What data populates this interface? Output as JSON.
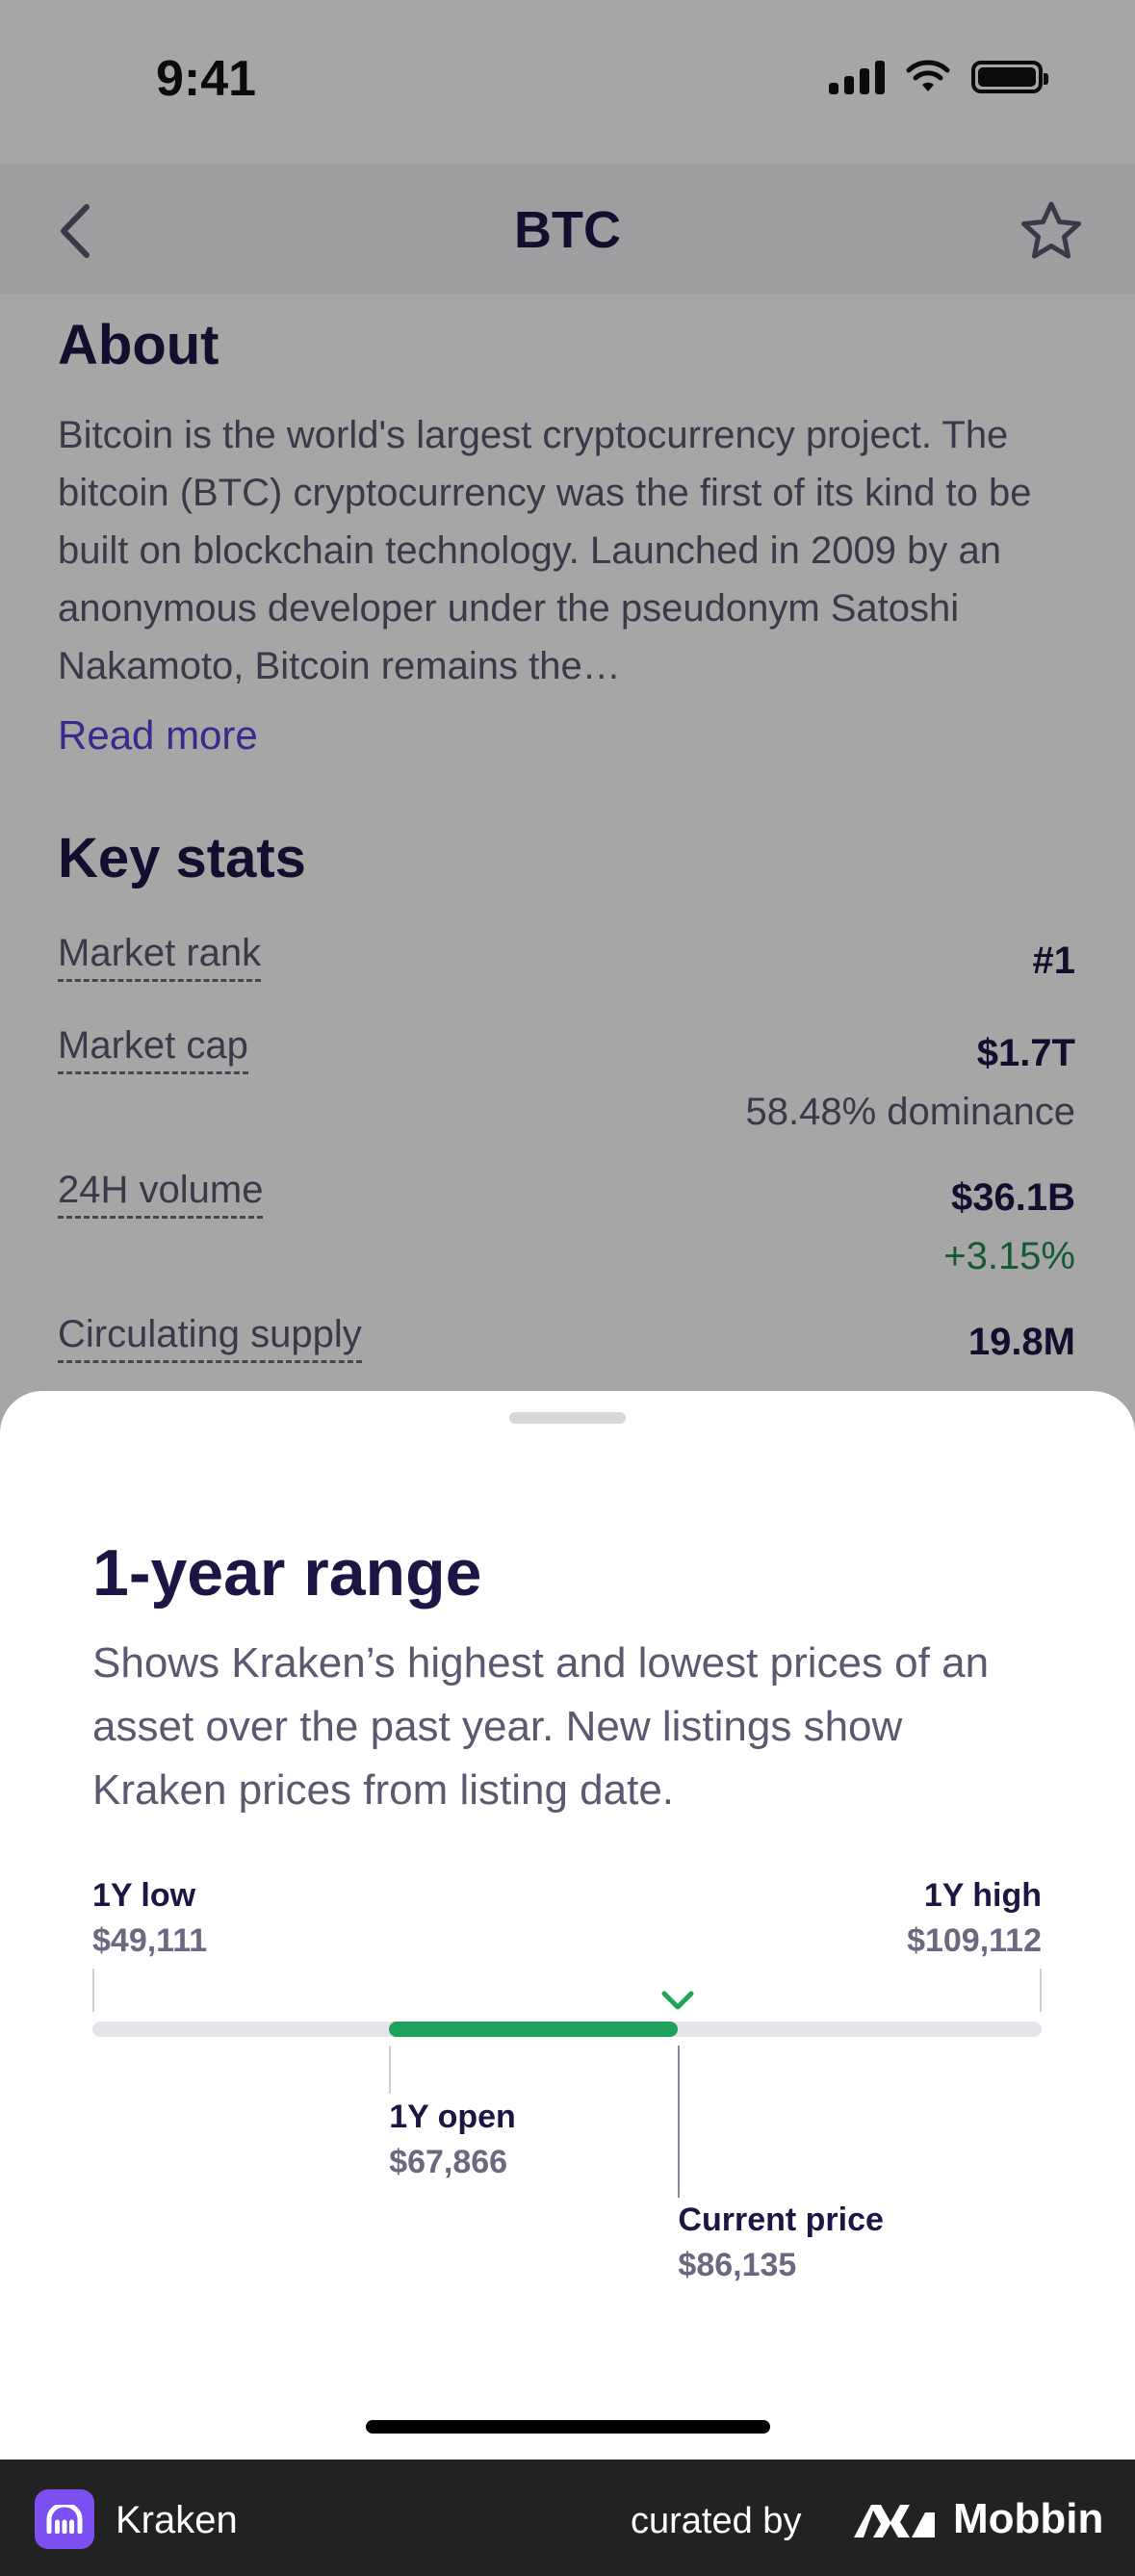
{
  "status_bar": {
    "time": "9:41"
  },
  "nav": {
    "title": "BTC"
  },
  "about": {
    "heading": "About",
    "body": "Bitcoin is the world's largest cryptocurrency project. The bitcoin (BTC) cryptocurrency was the first of its kind to be built on blockchain technology. Launched in 2009 by an anonymous developer under the pseudonym Satoshi Nakamoto, Bitcoin remains the…",
    "read_more": "Read more"
  },
  "key_stats": {
    "heading": "Key stats",
    "rows": [
      {
        "label": "Market rank",
        "value": "#1",
        "sub": ""
      },
      {
        "label": "Market cap",
        "value": "$1.7T",
        "sub": "58.48% dominance"
      },
      {
        "label": "24H volume",
        "value": "$36.1B",
        "sub": "+3.15%"
      },
      {
        "label": "Circulating supply",
        "value": "19.8M",
        "sub": ""
      }
    ]
  },
  "sheet": {
    "title": "1-year range",
    "description": "Shows Kraken’s highest and lowest prices of an asset over the past year. New listings show Kraken prices from listing date.",
    "low_label": "1Y low",
    "low_value": "$49,111",
    "high_label": "1Y high",
    "high_value": "$109,112",
    "open_label": "1Y open",
    "open_value": "$67,866",
    "current_label": "Current price",
    "current_value": "$86,135",
    "range": {
      "low": 49111,
      "high": 109112,
      "open": 67866,
      "current": 86135
    },
    "fill_color": "#1fa35c"
  },
  "footer": {
    "app_name": "Kraken",
    "curated_by": "curated by",
    "brand": "Mobbin"
  }
}
